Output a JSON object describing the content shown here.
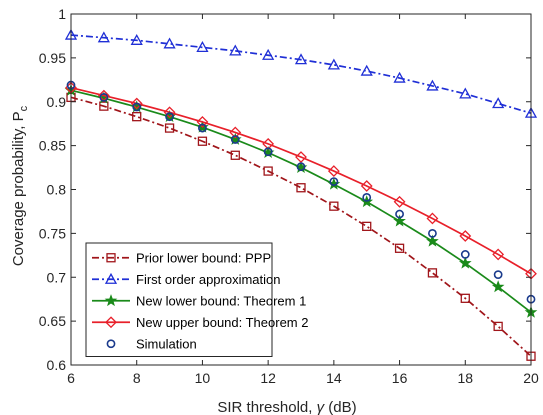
{
  "chart_data": {
    "type": "line",
    "xlabel_main": "SIR threshold, ",
    "xlabel_symbol": "γ",
    "xlabel_unit": " (dB)",
    "ylabel_main": "Coverage probability, P",
    "ylabel_sub": "c",
    "xlim": [
      6,
      20
    ],
    "ylim": [
      0.6,
      1.0
    ],
    "xticks": [
      6,
      8,
      10,
      12,
      14,
      16,
      18,
      20
    ],
    "xtick_labels": [
      "6",
      "8",
      "10",
      "12",
      "14",
      "16",
      "18",
      "20"
    ],
    "yticks": [
      0.6,
      0.65,
      0.7,
      0.75,
      0.8,
      0.85,
      0.9,
      0.95,
      1.0
    ],
    "ytick_labels": [
      "0.6",
      "0.65",
      "0.7",
      "0.75",
      "0.8",
      "0.85",
      "0.9",
      "0.95",
      "1"
    ],
    "grid": false,
    "legend_position": "bottom-left",
    "x": [
      6,
      7,
      8,
      9,
      10,
      11,
      12,
      13,
      14,
      15,
      16,
      17,
      18,
      19,
      20
    ],
    "series": [
      {
        "name": "Prior lower bound: PPP",
        "color": "#a0151a",
        "line": "dashdot",
        "marker": "square",
        "values": [
          0.905,
          0.895,
          0.883,
          0.87,
          0.855,
          0.839,
          0.821,
          0.802,
          0.781,
          0.758,
          0.733,
          0.705,
          0.676,
          0.644,
          0.61
        ]
      },
      {
        "name": "First order approximation",
        "color": "#1f2fd6",
        "line": "dashdot",
        "marker": "triangle",
        "values": [
          0.976,
          0.973,
          0.97,
          0.966,
          0.962,
          0.958,
          0.953,
          0.948,
          0.942,
          0.935,
          0.927,
          0.918,
          0.909,
          0.898,
          0.887
        ]
      },
      {
        "name": "New lower bound: Theorem 1",
        "color": "#1a8a1a",
        "line": "solid",
        "marker": "star",
        "values": [
          0.913,
          0.904,
          0.894,
          0.883,
          0.871,
          0.857,
          0.842,
          0.825,
          0.806,
          0.786,
          0.764,
          0.741,
          0.716,
          0.689,
          0.66
        ]
      },
      {
        "name": "New upper bound: Theorem 2",
        "color": "#e8202a",
        "line": "solid",
        "marker": "diamond",
        "values": [
          0.916,
          0.907,
          0.898,
          0.888,
          0.877,
          0.865,
          0.852,
          0.837,
          0.821,
          0.804,
          0.786,
          0.767,
          0.747,
          0.726,
          0.704
        ]
      },
      {
        "name": "Simulation",
        "color": "#1a3a8c",
        "line": "none",
        "marker": "circle",
        "values": [
          0.919,
          0.905,
          0.894,
          0.883,
          0.87,
          0.857,
          0.843,
          0.826,
          0.809,
          0.791,
          0.772,
          0.75,
          0.726,
          0.703,
          0.675
        ]
      }
    ]
  }
}
